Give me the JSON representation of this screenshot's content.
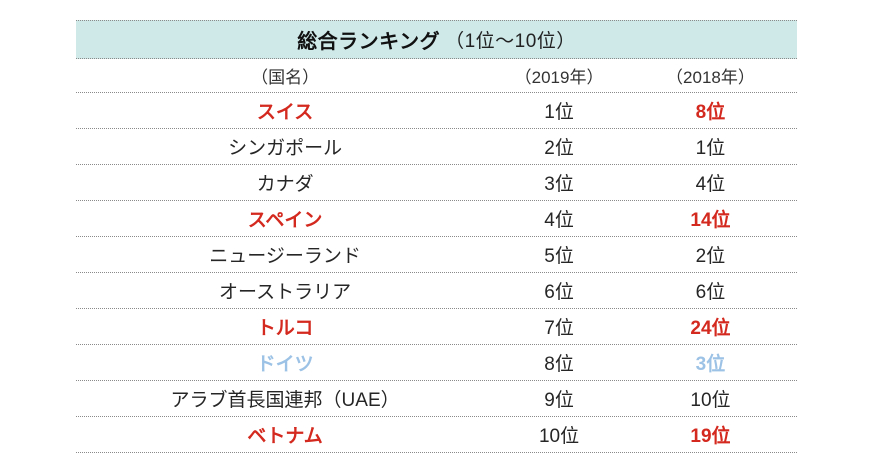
{
  "table": {
    "title_main": "総合ランキング",
    "title_range": "（1位～10位）",
    "columns": [
      "（国名）",
      "（2019年）",
      "（2018年）"
    ],
    "rows": [
      {
        "country": "スイス",
        "rank2019": "1位",
        "rank2018": "8位",
        "highlight": "red"
      },
      {
        "country": "シンガポール",
        "rank2019": "2位",
        "rank2018": "1位",
        "highlight": "none"
      },
      {
        "country": "カナダ",
        "rank2019": "3位",
        "rank2018": "4位",
        "highlight": "none"
      },
      {
        "country": "スペイン",
        "rank2019": "4位",
        "rank2018": "14位",
        "highlight": "red"
      },
      {
        "country": "ニュージーランド",
        "rank2019": "5位",
        "rank2018": "2位",
        "highlight": "none"
      },
      {
        "country": "オーストラリア",
        "rank2019": "6位",
        "rank2018": "6位",
        "highlight": "none"
      },
      {
        "country": "トルコ",
        "rank2019": "7位",
        "rank2018": "24位",
        "highlight": "red"
      },
      {
        "country": "ドイツ",
        "rank2019": "8位",
        "rank2018": "3位",
        "highlight": "blue"
      },
      {
        "country": "アラブ首長国連邦（UAE）",
        "rank2019": "9位",
        "rank2018": "10位",
        "highlight": "none"
      },
      {
        "country": "ベトナム",
        "rank2019": "10位",
        "rank2018": "19位",
        "highlight": "red"
      }
    ],
    "colors": {
      "header_bg": "#cfe9e9",
      "red": "#d3291e",
      "blue": "#9cc2e5",
      "border": "#8a8a8a",
      "text": "#262626"
    }
  },
  "chart_data": {
    "type": "table",
    "title": "総合ランキング（1位～10位）",
    "columns": [
      "（国名）",
      "（2019年）",
      "（2018年）"
    ],
    "rows": [
      [
        "スイス",
        "1位",
        "8位"
      ],
      [
        "シンガポール",
        "2位",
        "1位"
      ],
      [
        "カナダ",
        "3位",
        "4位"
      ],
      [
        "スペイン",
        "4位",
        "14位"
      ],
      [
        "ニュージーランド",
        "5位",
        "2位"
      ],
      [
        "オーストラリア",
        "6位",
        "6位"
      ],
      [
        "トルコ",
        "7位",
        "24位"
      ],
      [
        "ドイツ",
        "8位",
        "3位"
      ],
      [
        "アラブ首長国連邦（UAE）",
        "9位",
        "10位"
      ],
      [
        "ベトナム",
        "10位",
        "19位"
      ]
    ],
    "ranks_2019": [
      1,
      2,
      3,
      4,
      5,
      6,
      7,
      8,
      9,
      10
    ],
    "ranks_2018": [
      8,
      1,
      4,
      14,
      2,
      6,
      24,
      3,
      10,
      19
    ],
    "highlighted_red_countries": [
      "スイス",
      "スペイン",
      "トルコ",
      "ベトナム"
    ],
    "highlighted_blue_countries": [
      "ドイツ"
    ],
    "legend_position": "none",
    "grid": "horizontal-dotted"
  }
}
